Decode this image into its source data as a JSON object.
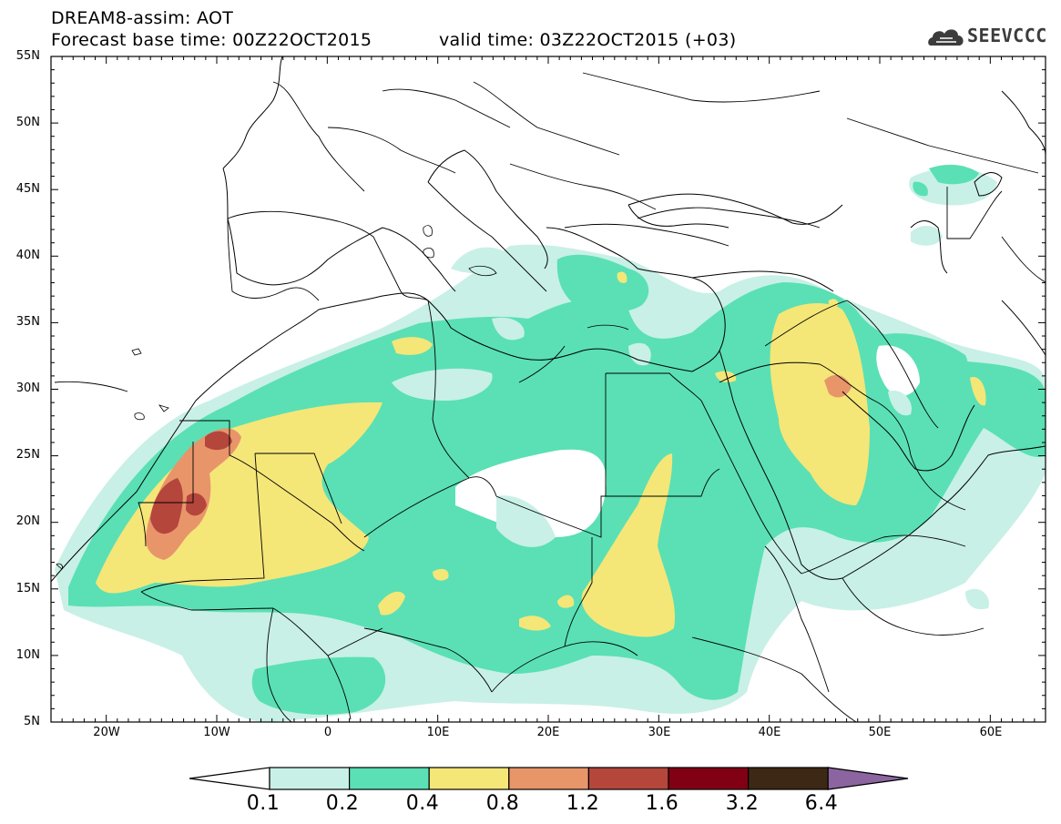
{
  "header": {
    "line1": "DREAM8-assim: AOT",
    "line2a": "Forecast base time: 00Z22OCT2015",
    "line2b": "valid time: 03Z22OCT2015 (+03)"
  },
  "logo": {
    "text": "SEEVCCC",
    "icon": "cloud-icon"
  },
  "map": {
    "lon_range": [
      -25,
      65
    ],
    "lat_range": [
      5,
      55
    ],
    "lat_labels": [
      "55N",
      "50N",
      "45N",
      "40N",
      "35N",
      "30N",
      "25N",
      "20N",
      "15N",
      "10N",
      "5N"
    ],
    "lon_labels": [
      "20W",
      "10W",
      "0",
      "10E",
      "20E",
      "30E",
      "40E",
      "50E",
      "60E"
    ]
  },
  "legend": {
    "labels": [
      "0.1",
      "0.2",
      "0.4",
      "0.8",
      "1.2",
      "1.6",
      "3.2",
      "6.4"
    ],
    "colors": [
      "#ffffff",
      "#c8f0e6",
      "#5ae0b4",
      "#f5e678",
      "#e8956a",
      "#b4463c",
      "#820014",
      "#3c2814",
      "#8c64a0"
    ]
  },
  "colors": {
    "c01": "#c8f0e6",
    "c02": "#5ae0b4",
    "c04": "#f5e678",
    "c08": "#e8956a",
    "c12": "#b4463c"
  }
}
